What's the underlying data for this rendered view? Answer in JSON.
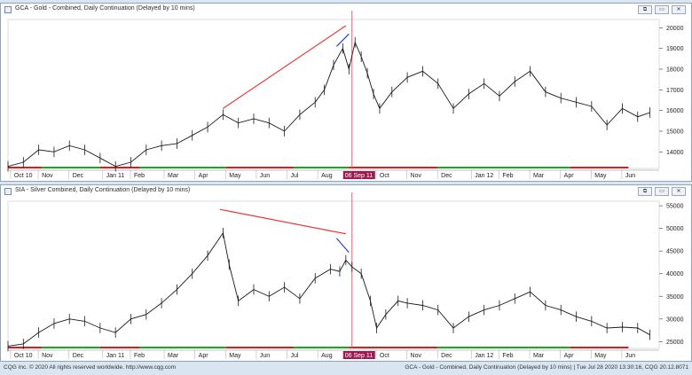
{
  "window_buttons": {
    "restore": "⧉",
    "minimize": "▭",
    "close": "✕"
  },
  "panes": [
    {
      "title": "GCA - Gold - Combined, Daily Continuation (Delayed by 10 mins)"
    },
    {
      "title": "SIA - Silver Combined, Daily Continuation (Delayed by 10 mins)"
    }
  ],
  "footer": {
    "left": "CQG Inc. © 2020 All rights reserved worldwide. http://www.cqg.com",
    "right": "GCA - Gold - Combined, Daily Continuation (Delayed by 10 mins) | Tue Jul 28 2020 13:30:16, CQG 20.12.8071"
  },
  "colors": {
    "price": "#1a1a1a",
    "trend_red": "#ee3333",
    "trend_blue": "#2b3fd9",
    "marker": "#9b1b52",
    "vline": "#e05060",
    "up": "#1fa51f",
    "down": "#cc2222"
  },
  "chart_data": [
    {
      "type": "line",
      "title": "GCA - Gold - Combined, Daily Continuation (Delayed by 10 mins)",
      "x_labels": [
        "Oct 10",
        "Nov",
        "Dec",
        "Jan 11",
        "Feb",
        "Mar",
        "Apr",
        "May",
        "Jun",
        "Jul",
        "Aug",
        "06 Sep 11",
        "Oct",
        "Nov",
        "Dec",
        "Jan 12",
        "Feb",
        "Mar",
        "Apr",
        "May",
        "Jun"
      ],
      "x_label_pos": [
        0.2,
        1.1,
        2.1,
        3.2,
        4.1,
        5.2,
        6.2,
        7.2,
        8.2,
        9.2,
        10.2,
        11.2,
        12.1,
        13.1,
        14.1,
        15.2,
        16.1,
        17.1,
        18.1,
        19.1,
        20.1
      ],
      "highlight_label": "06 Sep 11",
      "highlight_x": 11.2,
      "xlim": [
        0,
        21.2
      ],
      "y_ticks": [
        14000,
        15000,
        16000,
        17000,
        18000,
        19000,
        20000
      ],
      "y_tick_labels": [
        "14000",
        "15000",
        "16000",
        "17000",
        "18000",
        "19000",
        "20000"
      ],
      "ylim": [
        13200,
        20400
      ],
      "series": [
        {
          "x": [
            0,
            0.5,
            1.0,
            1.5,
            2.0,
            2.5,
            3.0,
            3.5,
            4.0,
            4.5,
            5.0,
            5.5,
            6.0,
            6.5,
            7.0,
            7.5,
            8.0,
            8.5,
            9.0,
            9.5,
            10.0,
            10.3,
            10.6,
            10.9,
            11.1,
            11.3,
            11.5,
            11.7,
            11.9,
            12.1,
            12.5,
            13.0,
            13.5,
            14.0,
            14.5,
            15.0,
            15.5,
            16.0,
            16.5,
            17.0,
            17.5,
            18.0,
            18.5,
            19.0,
            19.5,
            20.0,
            20.5,
            20.9
          ],
          "y": [
            13300,
            13500,
            14100,
            14000,
            14300,
            14100,
            13700,
            13300,
            13500,
            14100,
            14300,
            14400,
            14800,
            15200,
            15800,
            15400,
            15600,
            15400,
            15000,
            15800,
            16400,
            17000,
            18200,
            19000,
            18000,
            19300,
            18600,
            17800,
            16800,
            16100,
            16900,
            17600,
            17900,
            17300,
            16100,
            16800,
            17300,
            16700,
            17400,
            17900,
            16900,
            16600,
            16400,
            16200,
            15300,
            16100,
            15700,
            15900
          ]
        }
      ],
      "trendlines": [
        {
          "color": "red",
          "points": [
            [
              7.0,
              16100
            ],
            [
              11.0,
              20100
            ]
          ]
        },
        {
          "color": "blue",
          "points": [
            [
              10.7,
              19100
            ],
            [
              11.1,
              19700
            ]
          ]
        }
      ],
      "trend_bar": [
        {
          "from": 0,
          "to": 1.1,
          "color": "red"
        },
        {
          "from": 1.1,
          "to": 3.0,
          "color": "green"
        },
        {
          "from": 3.0,
          "to": 4.3,
          "color": "red"
        },
        {
          "from": 4.3,
          "to": 7.1,
          "color": "green"
        },
        {
          "from": 7.1,
          "to": 9.3,
          "color": "red"
        },
        {
          "from": 9.3,
          "to": 11.1,
          "color": "green"
        },
        {
          "from": 11.1,
          "to": 14.0,
          "color": "red"
        },
        {
          "from": 14.0,
          "to": 18.3,
          "color": "green"
        },
        {
          "from": 18.3,
          "to": 20.2,
          "color": "red"
        }
      ]
    },
    {
      "type": "line",
      "title": "SIA - Silver Combined, Daily Continuation (Delayed by 10 mins)",
      "x_labels": [
        "Oct 10",
        "Nov",
        "Dec",
        "Jan 11",
        "Feb",
        "Mar",
        "Apr",
        "May",
        "Jun",
        "Jul",
        "Aug",
        "06 Sep 11",
        "Oct",
        "Nov",
        "Dec",
        "Jan 12",
        "Feb",
        "Mar",
        "Apr",
        "May",
        "Jun"
      ],
      "x_label_pos": [
        0.2,
        1.1,
        2.1,
        3.2,
        4.1,
        5.2,
        6.2,
        7.2,
        8.2,
        9.2,
        10.2,
        11.2,
        12.1,
        13.1,
        14.1,
        15.2,
        16.1,
        17.1,
        18.1,
        19.1,
        20.1
      ],
      "highlight_label": "06 Sep 11",
      "highlight_x": 11.2,
      "xlim": [
        0,
        21.2
      ],
      "y_ticks": [
        25000,
        30000,
        35000,
        40000,
        45000,
        50000,
        55000
      ],
      "y_tick_labels": [
        "25000",
        "30000",
        "35000",
        "40000",
        "45000",
        "50000",
        "55000"
      ],
      "ylim": [
        23500,
        56000
      ],
      "series": [
        {
          "x": [
            0,
            0.5,
            1.0,
            1.5,
            2.0,
            2.5,
            3.0,
            3.5,
            4.0,
            4.5,
            5.0,
            5.5,
            6.0,
            6.5,
            7.0,
            7.2,
            7.5,
            8.0,
            8.5,
            9.0,
            9.5,
            10.0,
            10.5,
            10.8,
            11.0,
            11.2,
            11.5,
            11.8,
            12.0,
            12.3,
            12.7,
            13.0,
            13.5,
            14.0,
            14.5,
            15.0,
            15.5,
            16.0,
            16.5,
            17.0,
            17.5,
            18.0,
            18.5,
            19.0,
            19.5,
            20.0,
            20.5,
            20.9
          ],
          "y": [
            24000,
            24500,
            27000,
            29000,
            30000,
            29500,
            28000,
            27000,
            30000,
            31000,
            33500,
            36500,
            40000,
            44000,
            49000,
            42000,
            34000,
            36500,
            35000,
            37000,
            34500,
            39000,
            41000,
            40500,
            43000,
            41500,
            40000,
            34000,
            28000,
            31000,
            34000,
            33500,
            33000,
            32000,
            28000,
            30500,
            32000,
            33000,
            34500,
            36000,
            33000,
            32000,
            30500,
            29500,
            28000,
            28200,
            28000,
            26500
          ]
        }
      ],
      "trendlines": [
        {
          "color": "red",
          "points": [
            [
              6.9,
              54200
            ],
            [
              11.0,
              48800
            ]
          ]
        },
        {
          "color": "blue",
          "points": [
            [
              10.7,
              47800
            ],
            [
              11.1,
              44700
            ]
          ]
        }
      ],
      "trend_bar": [
        {
          "from": 0,
          "to": 1.1,
          "color": "red"
        },
        {
          "from": 1.1,
          "to": 3.0,
          "color": "green"
        },
        {
          "from": 3.0,
          "to": 4.3,
          "color": "red"
        },
        {
          "from": 4.3,
          "to": 7.1,
          "color": "green"
        },
        {
          "from": 7.1,
          "to": 9.3,
          "color": "red"
        },
        {
          "from": 9.3,
          "to": 11.1,
          "color": "green"
        },
        {
          "from": 11.1,
          "to": 14.0,
          "color": "red"
        },
        {
          "from": 14.0,
          "to": 18.3,
          "color": "green"
        },
        {
          "from": 18.3,
          "to": 20.2,
          "color": "red"
        }
      ]
    }
  ]
}
